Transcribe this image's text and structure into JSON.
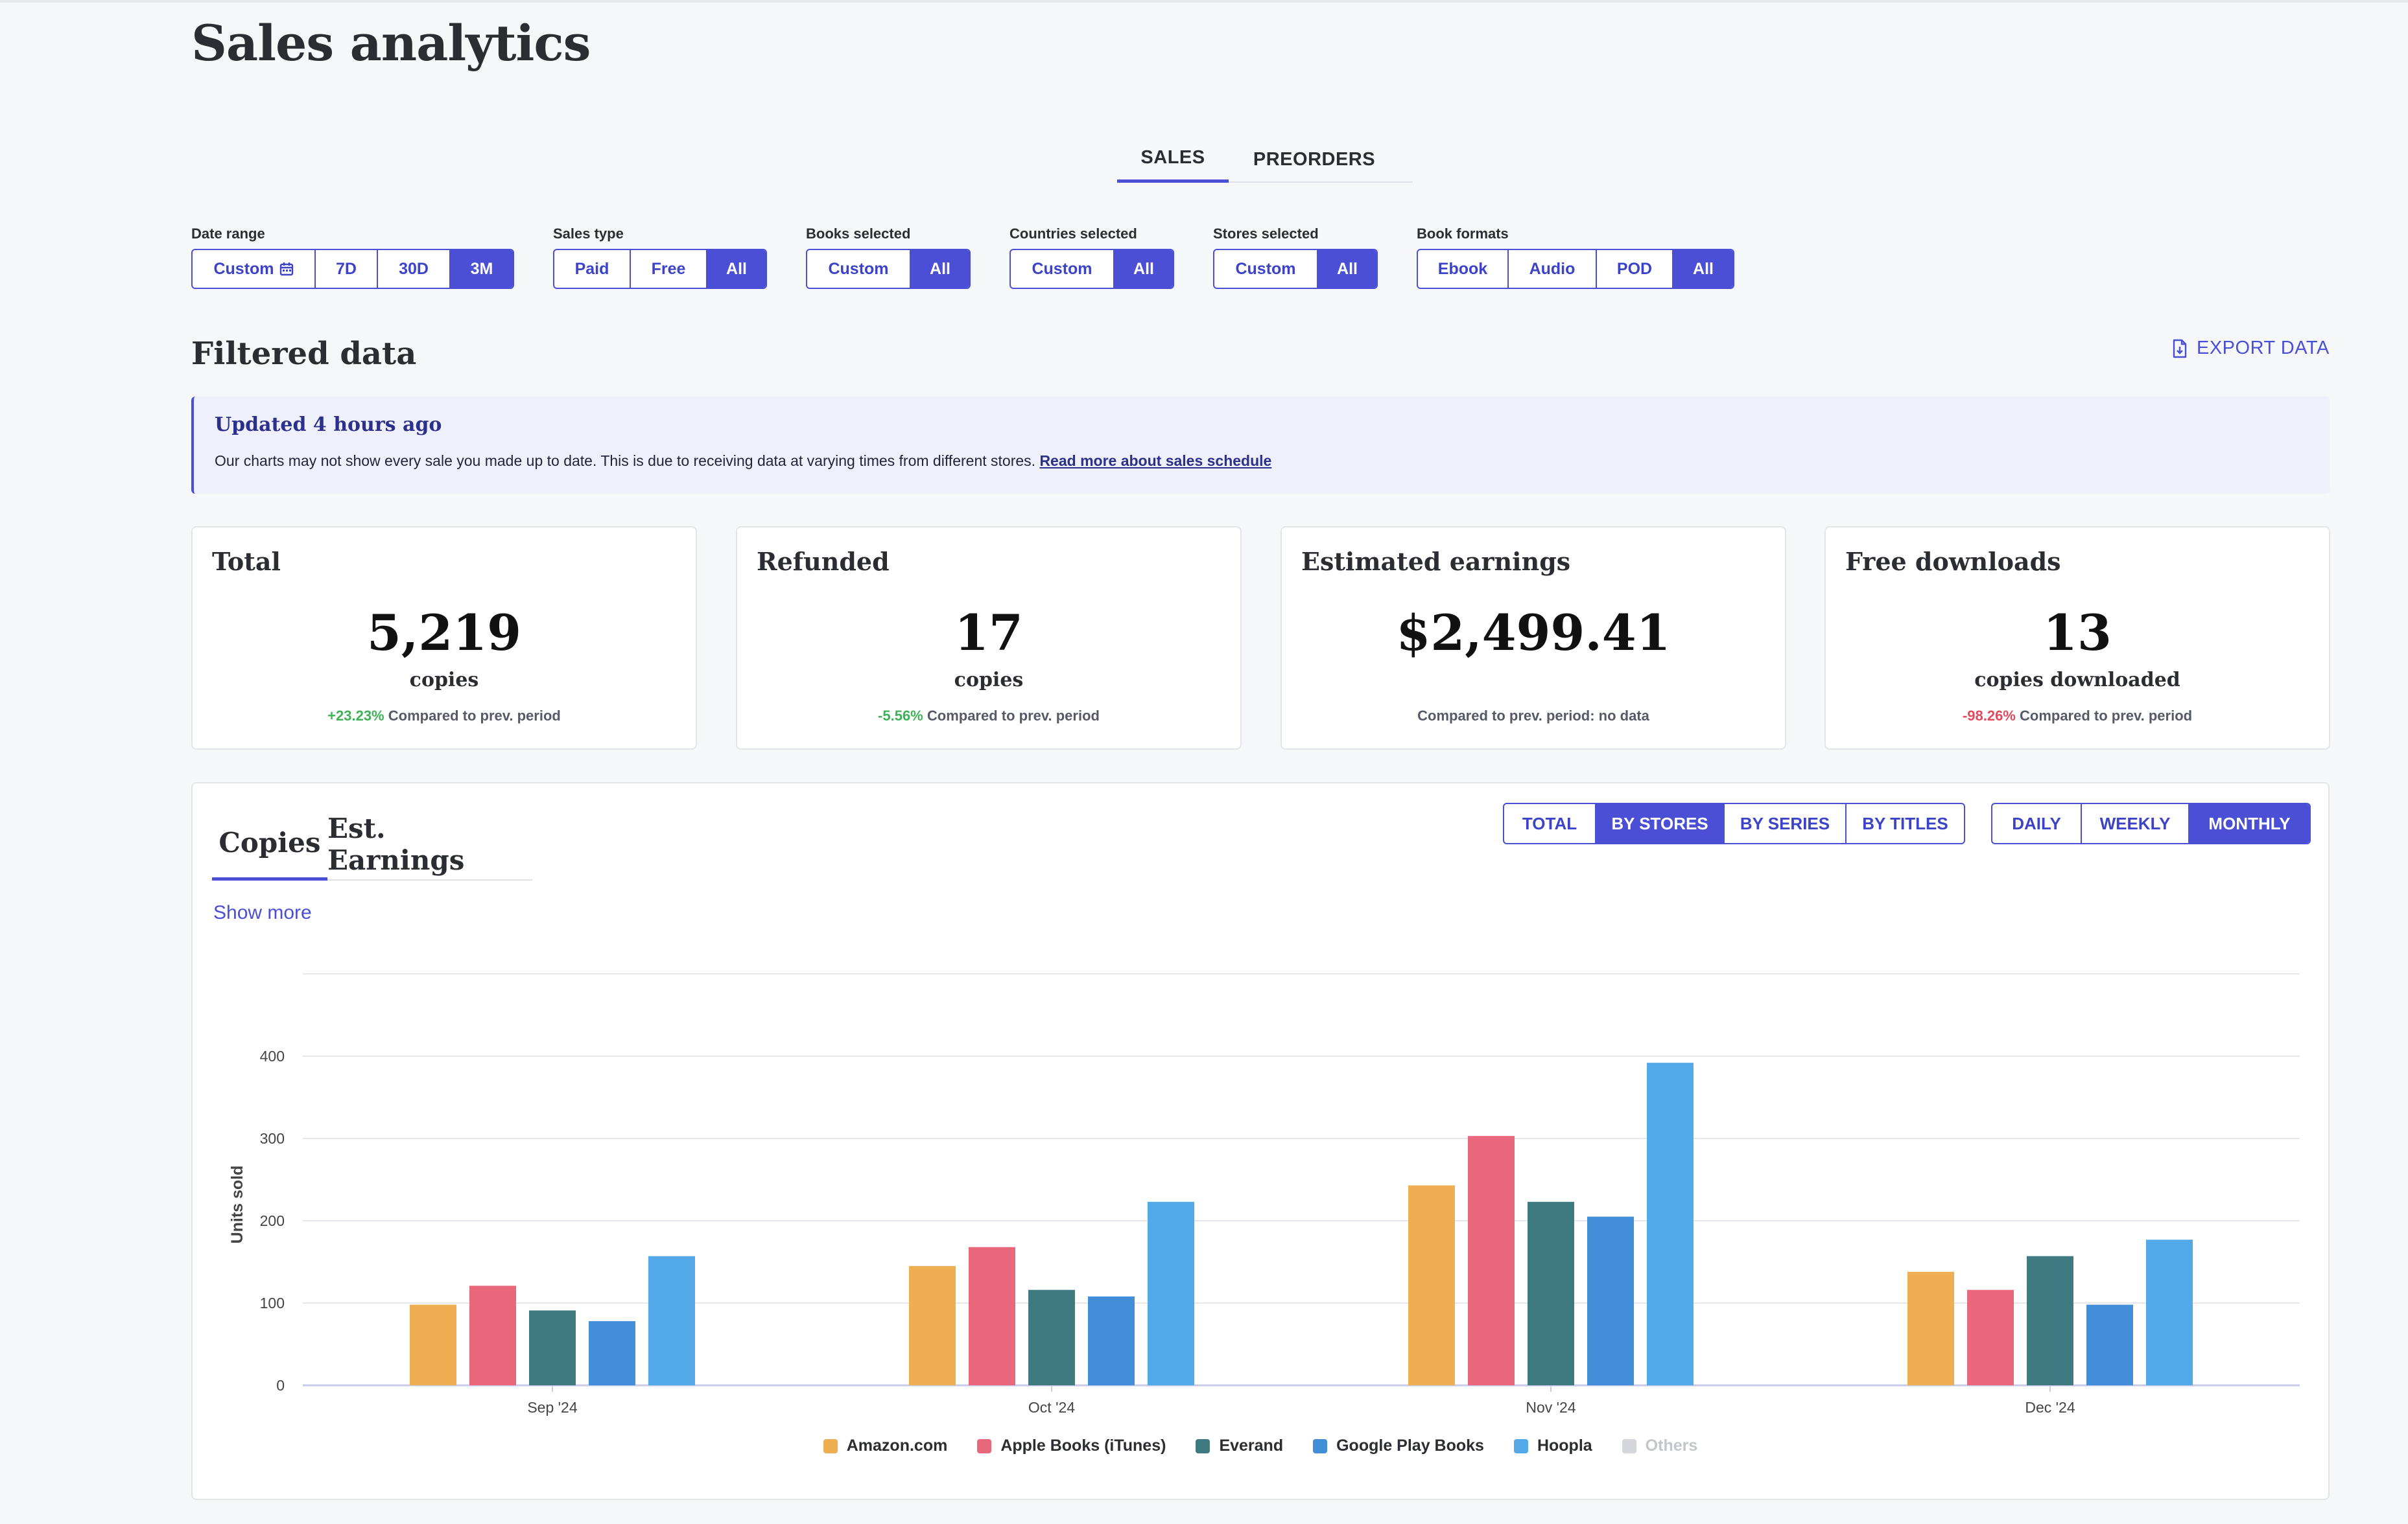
{
  "page": {
    "title": "Sales analytics"
  },
  "tabs": [
    {
      "label": "SALES",
      "active": true
    },
    {
      "label": "PREORDERS",
      "active": false
    }
  ],
  "filters": {
    "date_range": {
      "label": "Date range",
      "options": [
        "Custom",
        "7D",
        "30D",
        "3M"
      ],
      "selected": "3M"
    },
    "sales_type": {
      "label": "Sales type",
      "options": [
        "Paid",
        "Free",
        "All"
      ],
      "selected": "All"
    },
    "books": {
      "label": "Books selected",
      "options": [
        "Custom",
        "All"
      ],
      "selected": "All"
    },
    "countries": {
      "label": "Countries selected",
      "options": [
        "Custom",
        "All"
      ],
      "selected": "All"
    },
    "stores": {
      "label": "Stores selected",
      "options": [
        "Custom",
        "All"
      ],
      "selected": "All"
    },
    "formats": {
      "label": "Book formats",
      "options": [
        "Ebook",
        "Audio",
        "POD",
        "All"
      ],
      "selected": "All"
    }
  },
  "section": {
    "title": "Filtered data",
    "export_label": "EXPORT DATA"
  },
  "notice": {
    "title": "Updated 4 hours ago",
    "text": "Our charts may not show every sale you made up to date. This is due to receiving data at varying times from different stores.",
    "link": "Read more about sales schedule"
  },
  "cards": [
    {
      "title": "Total",
      "value": "5,219",
      "unit": "copies",
      "change": "+23.23%",
      "change_tone": "pos",
      "compare": "Compared to prev. period"
    },
    {
      "title": "Refunded",
      "value": "17",
      "unit": "copies",
      "change": "-5.56%",
      "change_tone": "pos",
      "compare": "Compared to prev. period"
    },
    {
      "title": "Estimated earnings",
      "value": "$2,499.41",
      "unit": "",
      "change": "",
      "change_tone": "",
      "compare": "Compared to prev. period: no data"
    },
    {
      "title": "Free downloads",
      "value": "13",
      "unit": "copies downloaded",
      "change": "-98.26%",
      "change_tone": "neg",
      "compare": "Compared to prev. period"
    }
  ],
  "chart_panel": {
    "tabs": [
      {
        "label": "Copies",
        "active": true
      },
      {
        "label": "Est. Earnings",
        "active": false
      }
    ],
    "show_more": "Show more",
    "group_options": [
      "TOTAL",
      "BY STORES",
      "BY SERIES",
      "BY TITLES"
    ],
    "group_selected": "BY STORES",
    "period_options": [
      "DAILY",
      "WEEKLY",
      "MONTHLY"
    ],
    "period_selected": "MONTHLY"
  },
  "colors": {
    "accent": "#4a4fd6",
    "amazon": "#f0ae53",
    "apple": "#e8677a",
    "everand": "#3e7a80",
    "google": "#428ed8",
    "hoopla": "#53a9e8",
    "others": "#d4d6da"
  },
  "icons": {
    "calendar": "calendar-icon",
    "export": "file-export-icon"
  },
  "chart_data": {
    "type": "bar",
    "categories": [
      "Sep '24",
      "Oct '24",
      "Nov '24",
      "Dec '24"
    ],
    "series": [
      {
        "name": "Amazon.com",
        "color": "#f0ae53",
        "values": [
          98,
          145,
          243,
          138
        ]
      },
      {
        "name": "Apple Books (iTunes)",
        "color": "#e8677a",
        "values": [
          121,
          168,
          303,
          116
        ]
      },
      {
        "name": "Everand",
        "color": "#3e7a80",
        "values": [
          91,
          116,
          223,
          157
        ]
      },
      {
        "name": "Google Play Books",
        "color": "#428ed8",
        "values": [
          78,
          108,
          205,
          98
        ]
      },
      {
        "name": "Hoopla",
        "color": "#53a9e8",
        "values": [
          157,
          223,
          392,
          177
        ]
      }
    ],
    "legend_extra": [
      {
        "name": "Others",
        "color": "#d4d6da",
        "disabled": true
      }
    ],
    "ylabel": "Units sold",
    "yticks": [
      0,
      100,
      200,
      300,
      400
    ],
    "ylim": [
      0,
      500
    ],
    "grid": true,
    "legend_position": "bottom"
  }
}
